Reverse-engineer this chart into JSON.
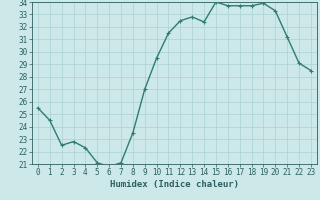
{
  "x": [
    0,
    1,
    2,
    3,
    4,
    5,
    6,
    7,
    8,
    9,
    10,
    11,
    12,
    13,
    14,
    15,
    16,
    17,
    18,
    19,
    20,
    21,
    22,
    23
  ],
  "y": [
    25.5,
    24.5,
    22.5,
    22.8,
    22.3,
    21.1,
    20.8,
    21.1,
    23.5,
    27.0,
    29.5,
    31.5,
    32.5,
    32.8,
    32.4,
    34.0,
    33.7,
    33.7,
    33.7,
    33.9,
    33.3,
    31.2,
    29.1,
    28.5
  ],
  "line_color": "#2e7d6e",
  "marker": "+",
  "bg_color": "#cce8e8",
  "grid_color": "#b0d4d4",
  "tick_color": "#2e5f5f",
  "xlabel": "Humidex (Indice chaleur)",
  "ylim": [
    21,
    34
  ],
  "xlim": [
    -0.5,
    23.5
  ],
  "yticks": [
    21,
    22,
    23,
    24,
    25,
    26,
    27,
    28,
    29,
    30,
    31,
    32,
    33,
    34
  ],
  "xticks": [
    0,
    1,
    2,
    3,
    4,
    5,
    6,
    7,
    8,
    9,
    10,
    11,
    12,
    13,
    14,
    15,
    16,
    17,
    18,
    19,
    20,
    21,
    22,
    23
  ],
  "label_fontsize": 6.5,
  "tick_fontsize": 5.5,
  "line_width": 1.0,
  "marker_size": 3.5,
  "marker_edge_width": 0.8
}
